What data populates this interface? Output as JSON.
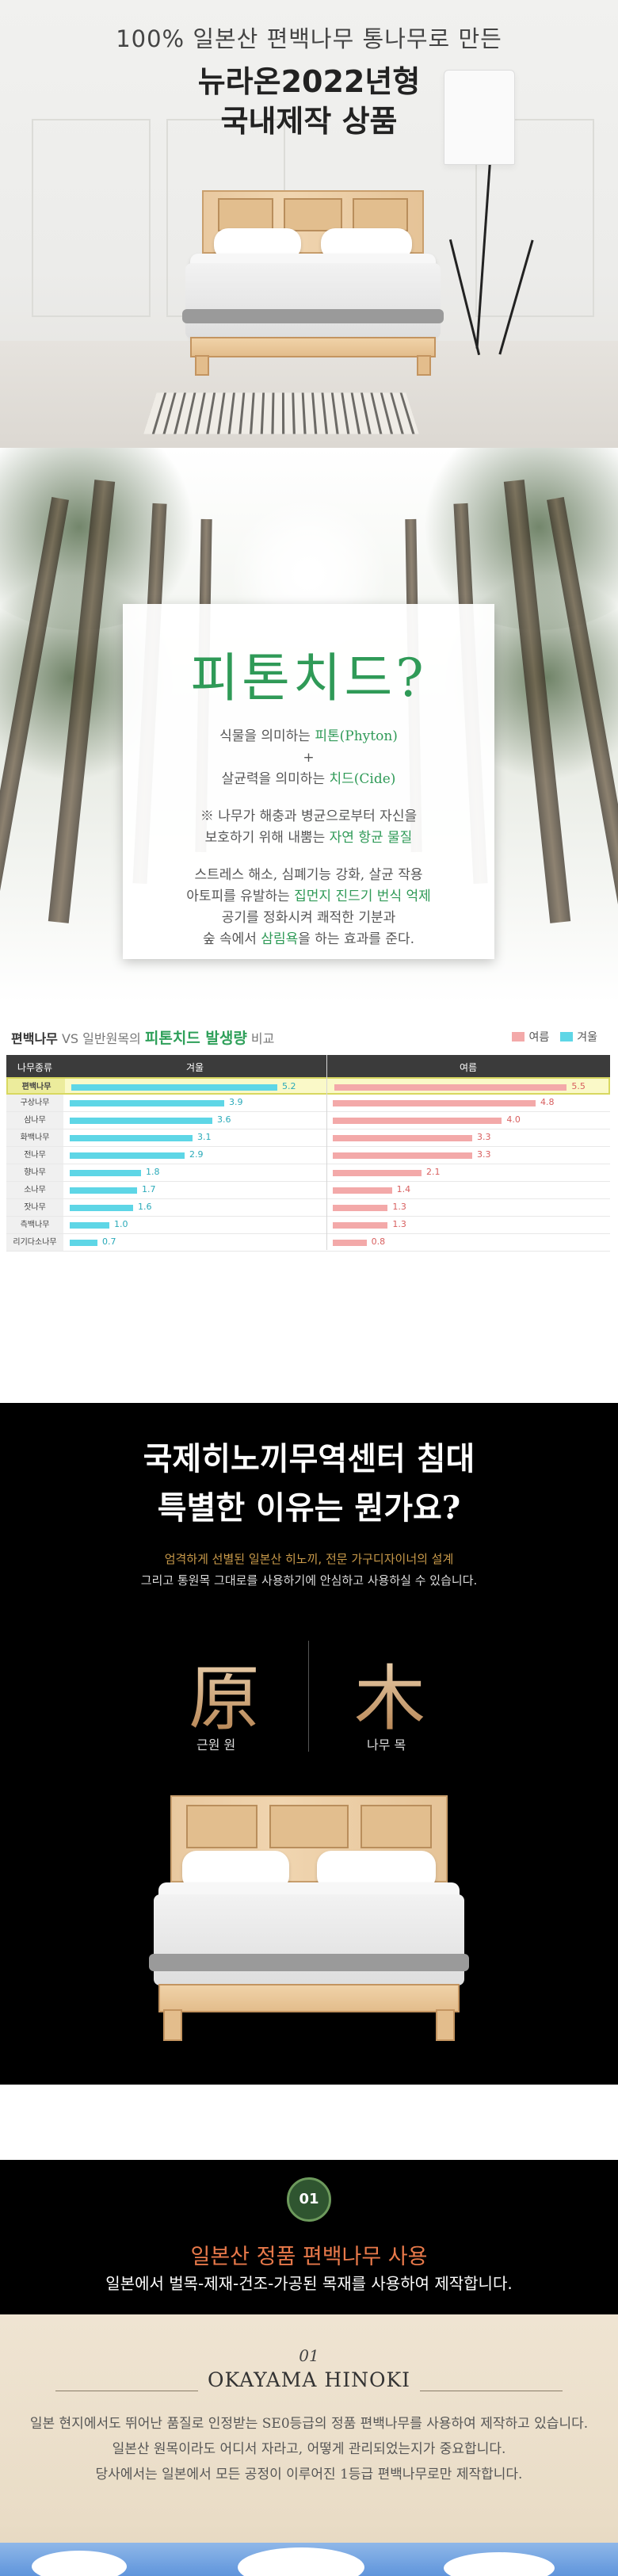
{
  "hero": {
    "subtitle": "100% 일본산 편백나무 통나무로 만든",
    "title_line1": "뉴라온2022년형",
    "title_line2": "국내제작 상품"
  },
  "phytoncide": {
    "heading": "피톤치드?",
    "line1_pre": "식물을 의미하는 ",
    "line1_em": "피톤(Phyton)",
    "plus": "+",
    "line2_pre": "살균력을 의미하는 ",
    "line2_em": "치드(Cide)",
    "note1": "※ 나무가 해충과 병균으로부터 자신을",
    "note2_pre": "보호하기 위해 내뿜는 ",
    "note2_em": "자연 항균 물질",
    "eff1": "스트레스 해소, 심폐기능 강화, 살균 작용",
    "eff2_pre": "아토피를 유발하는 ",
    "eff2_em": "집먼지 진드기 번식 억제",
    "eff3": "공기를 정화시켜 쾌적한 기분과",
    "eff4_pre": "숲 속에서 ",
    "eff4_em": "삼림욕",
    "eff4_post": "을 하는 효과를 준다."
  },
  "comparison": {
    "title_a": "편백나무",
    "title_vs": " VS ",
    "title_b": "일반원목의 ",
    "title_c": "피톤치드 발생량",
    "title_d": " 비교",
    "legend_summer": "여름",
    "legend_winter": "겨울",
    "col_type": "나무종류",
    "col_winter": "겨울",
    "col_summer": "여름",
    "colors": {
      "winter": "#5ed6e6",
      "summer": "#f3a9a9",
      "highlight": "#faf9c8"
    }
  },
  "chart_data": {
    "type": "bar",
    "title": "편백나무 VS 일반원목의 피톤치드 발생량 비교",
    "categories": [
      "편백나무",
      "구상나무",
      "삼나무",
      "화백나무",
      "전나무",
      "향나무",
      "소나무",
      "잣나무",
      "측백나무",
      "리기다소나무"
    ],
    "series": [
      {
        "name": "겨울",
        "values": [
          5.2,
          3.9,
          3.6,
          3.1,
          2.9,
          1.8,
          1.7,
          1.6,
          1.0,
          0.7
        ]
      },
      {
        "name": "여름",
        "values": [
          5.5,
          4.8,
          4.0,
          3.3,
          3.3,
          2.1,
          1.4,
          1.3,
          1.3,
          0.8
        ]
      }
    ],
    "value_labels_winter": [
      "5.2",
      "3.9",
      "3.6",
      "3.1",
      "2.9",
      "1.8",
      "1.7",
      "1.6",
      "1.0",
      "0.7"
    ],
    "value_labels_summer": [
      "5.5",
      "4.8",
      "4.0",
      "3.3",
      "3.3",
      "2.1",
      "1.4",
      "1.3",
      "1.3",
      "0.8"
    ],
    "highlight_category": "편백나무",
    "legend_placement": "top-right"
  },
  "why": {
    "heading_line1": "국제히노끼무역센터 침대",
    "heading_line2": "특별한 이유는 뭔가요?",
    "sub1": "엄격하게 선별된 일본산 히노끼, 전문 가구디자이너의 설계",
    "sub2": "그리고 통원목 그대로를 사용하기에 안심하고 사용하실 수 있습니다.",
    "char1": "原",
    "char1_caption": "근원 원",
    "char2": "木",
    "char2_caption": "나무 목"
  },
  "point1": {
    "badge": "01",
    "title": "일본산 정품 편백나무 사용",
    "subtitle": "일본에서 벌목-제재-건조-가공된 목재를 사용하여 제작합니다."
  },
  "okayama": {
    "number": "01",
    "name": "OKAYAMA HINOKI",
    "desc1": "일본 현지에서도 뛰어난 품질로 인정받는 SE0등급의 정품 편백나무를 사용하여 제작하고 있습니다.",
    "desc2": "일본산 원목이라도 어디서 자라고, 어떻게 관리되었는지가 중요합니다.",
    "desc3": "당사에서는 일본에서 모든 공정이 이루어진 1등급 편백나무로만 제작합니다."
  }
}
